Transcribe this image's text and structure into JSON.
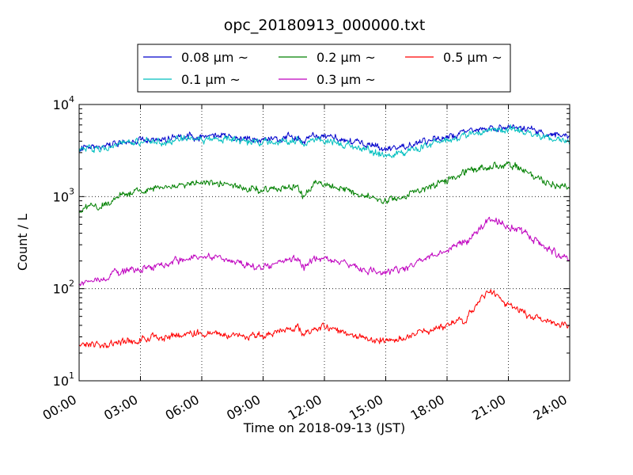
{
  "chart_data": {
    "type": "line",
    "title": "opc_20180913_000000.txt",
    "xlabel": "Time on 2018-09-13 (JST)",
    "ylabel": "Count / L",
    "yscale": "log",
    "grid": true,
    "legend_position": "top, above plot",
    "x_ticks": [
      "00:00",
      "03:00",
      "06:00",
      "09:00",
      "12:00",
      "15:00",
      "18:00",
      "21:00",
      "24:00"
    ],
    "x_tick_hours": [
      0,
      3,
      6,
      9,
      12,
      15,
      18,
      21,
      24
    ],
    "xlim_hours": [
      0,
      24
    ],
    "ylim": [
      10,
      10000
    ],
    "y_ticks": [
      {
        "value": 10,
        "base": "10",
        "exp": "1"
      },
      {
        "value": 100,
        "base": "10",
        "exp": "2"
      },
      {
        "value": 1000,
        "base": "10",
        "exp": "3"
      },
      {
        "value": 10000,
        "base": "10",
        "exp": "4"
      }
    ],
    "series": [
      {
        "name": "0.08 μm ~",
        "color": "#0000cc",
        "x_hours": [
          0,
          1,
          2,
          3,
          4,
          5,
          6,
          7,
          8,
          9,
          10,
          10.7,
          11,
          11.5,
          12,
          13,
          14,
          15,
          16,
          17,
          18,
          19,
          20,
          21,
          22,
          23,
          24
        ],
        "values": [
          3400,
          3600,
          3900,
          4100,
          4300,
          4400,
          4500,
          4500,
          4300,
          4200,
          4300,
          4500,
          4000,
          4500,
          4500,
          4100,
          3700,
          3300,
          3600,
          4000,
          4500,
          5200,
          5400,
          5700,
          5300,
          4800,
          4600
        ]
      },
      {
        "name": "0.1 μm ~",
        "color": "#00bfbf",
        "x_hours": [
          0,
          1,
          2,
          3,
          4,
          5,
          6,
          7,
          8,
          9,
          10,
          10.7,
          11,
          11.5,
          12,
          13,
          14,
          15,
          16,
          17,
          18,
          19,
          20,
          21,
          22,
          23,
          24
        ],
        "values": [
          3200,
          3400,
          3700,
          3900,
          4000,
          4100,
          4200,
          4200,
          4000,
          3900,
          4000,
          4200,
          3700,
          4200,
          4100,
          3700,
          3300,
          2800,
          3100,
          3500,
          4000,
          4700,
          5000,
          5500,
          4900,
          4300,
          4000
        ]
      },
      {
        "name": "0.2 μm ~",
        "color": "#008000",
        "x_hours": [
          0,
          1,
          2,
          3,
          4,
          5,
          6,
          7,
          8,
          9,
          10,
          10.7,
          11,
          11.5,
          12,
          13,
          14,
          15,
          16,
          17,
          18,
          19,
          20,
          21,
          22,
          23,
          24
        ],
        "values": [
          700,
          820,
          1000,
          1150,
          1250,
          1350,
          1450,
          1400,
          1250,
          1150,
          1250,
          1300,
          950,
          1400,
          1350,
          1200,
          1000,
          900,
          1050,
          1250,
          1500,
          1900,
          2100,
          2300,
          1800,
          1450,
          1200
        ]
      },
      {
        "name": "0.3 μm ~",
        "color": "#bf00bf",
        "x_hours": [
          0,
          1,
          2,
          3,
          4,
          5,
          6,
          7,
          8,
          9,
          10,
          10.7,
          11,
          11.5,
          12,
          13,
          14,
          15,
          16,
          17,
          18,
          19,
          20,
          21,
          22,
          23,
          24
        ],
        "values": [
          115,
          130,
          150,
          165,
          185,
          205,
          225,
          210,
          185,
          170,
          195,
          210,
          170,
          215,
          210,
          185,
          160,
          145,
          170,
          215,
          260,
          330,
          560,
          470,
          380,
          260,
          210
        ]
      },
      {
        "name": "0.5 μm ~",
        "color": "#ff0000",
        "x_hours": [
          0,
          1,
          2,
          3,
          4,
          5,
          6,
          7,
          8,
          9,
          10,
          10.7,
          11,
          11.5,
          12,
          13,
          14,
          15,
          16,
          17,
          18,
          19,
          20,
          21,
          22,
          23,
          24
        ],
        "values": [
          24,
          25,
          26,
          28,
          30,
          32,
          34,
          32,
          30,
          30,
          35,
          38,
          32,
          38,
          40,
          33,
          29,
          27,
          30,
          35,
          40,
          48,
          95,
          70,
          52,
          45,
          40
        ]
      }
    ]
  }
}
